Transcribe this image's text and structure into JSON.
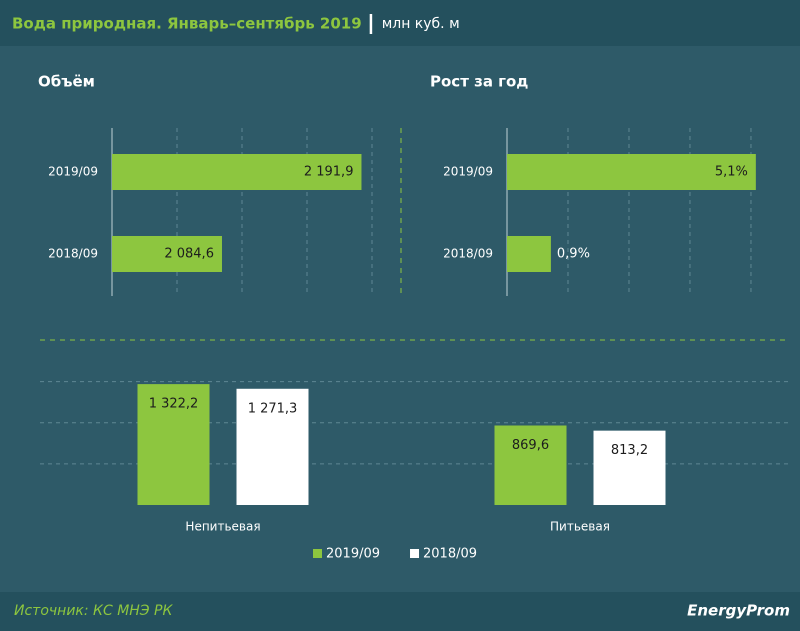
{
  "header": {
    "title": "Вода природная. Январь–сентябрь 2019",
    "unit": "млн куб. м"
  },
  "chart_data": [
    {
      "type": "hbar",
      "title": "Объём",
      "categories": [
        "2019/09",
        "2018/09"
      ],
      "values": [
        2191.9,
        2084.6
      ],
      "value_labels": [
        "2 191,9",
        "2 084,6"
      ],
      "color": "#8dc63f",
      "xlim": [
        2000,
        2220
      ],
      "xticks": [
        2050,
        2100,
        2150,
        2200
      ],
      "grid": true
    },
    {
      "type": "hbar",
      "title": "Рост за год",
      "categories": [
        "2019/09",
        "2018/09"
      ],
      "values": [
        5.1,
        0.9
      ],
      "value_labels": [
        "5,1%",
        "0,9%"
      ],
      "color": "#8dc63f",
      "xlim": [
        0,
        5.8
      ],
      "xticks": [
        1.25,
        2.5,
        3.75,
        5
      ],
      "grid": true
    },
    {
      "type": "bar",
      "categories": [
        "Непитьевая",
        "Питьевая"
      ],
      "series": [
        {
          "name": "2019/09",
          "color": "#8dc63f",
          "values": [
            1322.2,
            869.6
          ],
          "value_labels": [
            "1 322,2",
            "869,6"
          ]
        },
        {
          "name": "2018/09",
          "color": "#ffffff",
          "values": [
            1271.3,
            813.2
          ],
          "value_labels": [
            "1 271,3",
            "813,2"
          ]
        }
      ],
      "ylim": [
        0,
        1750
      ],
      "yticks": [
        450,
        900,
        1350
      ],
      "grid": true,
      "legend": "bottom"
    }
  ],
  "footer": {
    "source": "Источник: КС МНЭ РК",
    "brand": "EnergyProm"
  }
}
